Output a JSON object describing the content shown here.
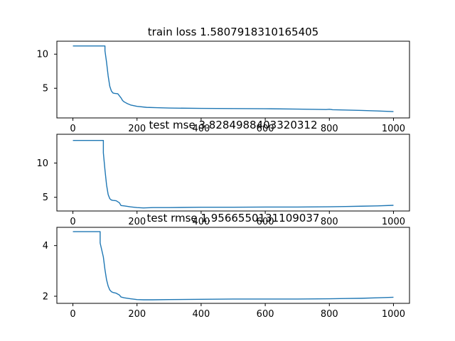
{
  "chart_data": [
    {
      "type": "line",
      "title": "train loss 1.5807918310165405",
      "xlim": [
        -50,
        1050
      ],
      "ylim": [
        0.65,
        11.9
      ],
      "xticks": [
        0,
        200,
        400,
        600,
        800,
        1000
      ],
      "xtick_labels": [
        "0",
        "200",
        "400",
        "600",
        "800",
        "1000"
      ],
      "yticks": [
        5,
        10
      ],
      "ytick_labels": [
        "5",
        "10"
      ],
      "grid": false,
      "color": "#1f77b4",
      "series": [
        {
          "x": [
            0,
            100,
            100,
            105,
            110,
            115,
            120,
            125,
            130,
            140,
            150,
            155,
            160,
            170,
            180,
            200,
            230,
            260,
            300,
            400,
            500,
            600,
            700,
            790,
            800,
            810,
            900,
            950,
            1000
          ],
          "y": [
            11.2,
            11.2,
            10.5,
            8.8,
            6.8,
            5.3,
            4.6,
            4.3,
            4.25,
            4.2,
            3.6,
            3.2,
            3.0,
            2.75,
            2.55,
            2.35,
            2.2,
            2.15,
            2.1,
            2.05,
            2.02,
            2.0,
            1.95,
            1.88,
            1.92,
            1.85,
            1.75,
            1.67,
            1.58
          ]
        }
      ]
    },
    {
      "type": "line",
      "title": "test mse 3.8284988403320312",
      "xlim": [
        -50,
        1050
      ],
      "ylim": [
        3.0,
        14.2
      ],
      "xticks": [
        0,
        200,
        400,
        600,
        800,
        1000
      ],
      "xtick_labels": [
        "0",
        "200",
        "400",
        "600",
        "800",
        "1000"
      ],
      "yticks": [
        5,
        10
      ],
      "ytick_labels": [
        "5",
        "10"
      ],
      "grid": false,
      "color": "#1f77b4",
      "series": [
        {
          "x": [
            0,
            95,
            95,
            100,
            105,
            110,
            115,
            120,
            125,
            135,
            145,
            150,
            160,
            180,
            200,
            220,
            250,
            300,
            400,
            500,
            600,
            700,
            800,
            850,
            900,
            950,
            1000
          ],
          "y": [
            13.3,
            13.3,
            11.5,
            9.0,
            6.8,
            5.4,
            4.8,
            4.6,
            4.55,
            4.5,
            4.2,
            3.8,
            3.75,
            3.6,
            3.5,
            3.45,
            3.5,
            3.5,
            3.55,
            3.55,
            3.58,
            3.58,
            3.62,
            3.65,
            3.7,
            3.75,
            3.83
          ]
        }
      ]
    },
    {
      "type": "line",
      "title": "test rmse 1.9566550131109037",
      "xlim": [
        -50,
        1050
      ],
      "ylim": [
        1.72,
        4.72
      ],
      "xticks": [
        0,
        200,
        400,
        600,
        800,
        1000
      ],
      "xtick_labels": [
        "0",
        "200",
        "400",
        "600",
        "800",
        "1000"
      ],
      "yticks": [
        2,
        4
      ],
      "ytick_labels": [
        "2",
        "4"
      ],
      "grid": false,
      "color": "#1f77b4",
      "series": [
        {
          "x": [
            0,
            85,
            85,
            95,
            100,
            105,
            110,
            115,
            120,
            125,
            135,
            145,
            150,
            160,
            180,
            200,
            220,
            250,
            300,
            400,
            500,
            600,
            700,
            800,
            850,
            900,
            950,
            1000
          ],
          "y": [
            4.55,
            4.55,
            4.1,
            3.55,
            3.05,
            2.65,
            2.4,
            2.25,
            2.18,
            2.15,
            2.12,
            2.05,
            1.97,
            1.94,
            1.9,
            1.87,
            1.86,
            1.86,
            1.87,
            1.88,
            1.89,
            1.89,
            1.89,
            1.9,
            1.91,
            1.92,
            1.94,
            1.96
          ]
        }
      ]
    }
  ]
}
